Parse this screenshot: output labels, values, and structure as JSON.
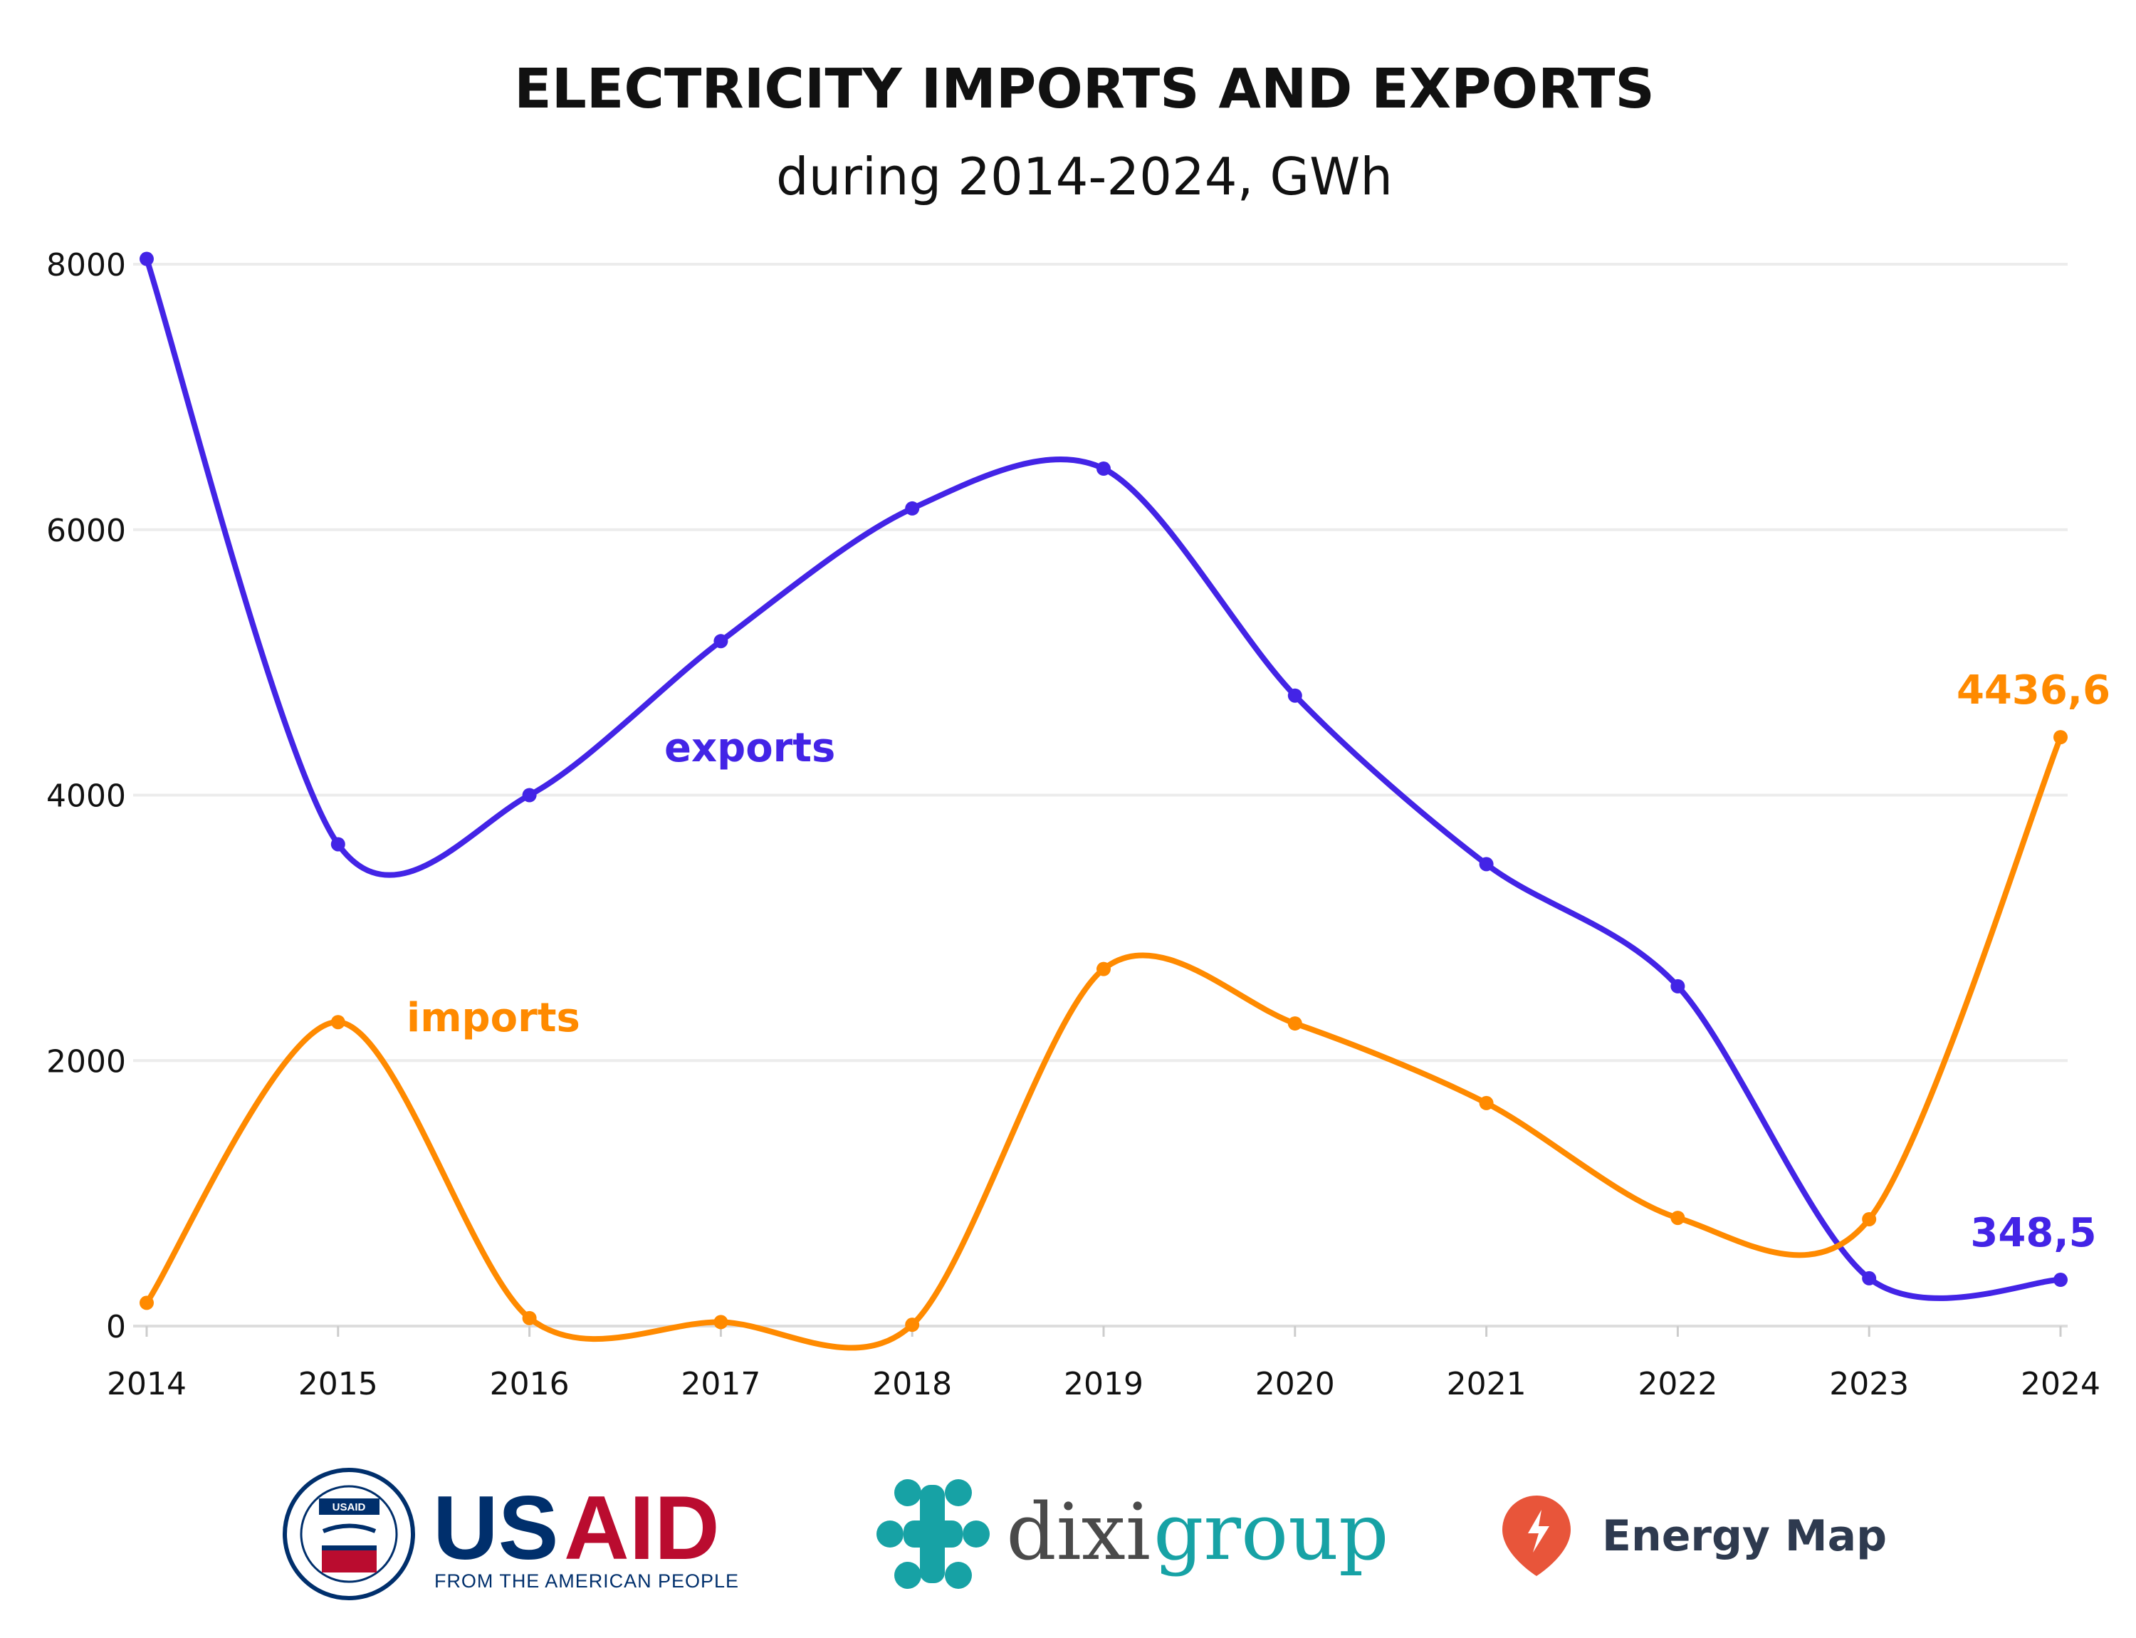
{
  "chart_data": {
    "type": "line",
    "title": "ELECTRICITY IMPORTS AND EXPORTS",
    "subtitle": "during 2014-2024, GWh",
    "xlabel": "",
    "ylabel": "",
    "categories": [
      "2014",
      "2015",
      "2016",
      "2017",
      "2018",
      "2019",
      "2020",
      "2021",
      "2022",
      "2023",
      "2024"
    ],
    "yticks": [
      "0",
      "2000",
      "4000",
      "6000",
      "8000"
    ],
    "ylim": [
      0,
      8000
    ],
    "grid": true,
    "smooth": true,
    "series": [
      {
        "name": "exports",
        "color": "#4324e6",
        "values": [
          8040,
          3630,
          4000,
          5160,
          6160,
          6460,
          4750,
          3480,
          2560,
          360,
          348.5
        ],
        "end_label": "348,5"
      },
      {
        "name": "imports",
        "color": "#ff8a00",
        "values": [
          175,
          2290,
          60,
          30,
          10,
          2690,
          2280,
          1680,
          815,
          805,
          4436.6
        ],
        "end_label": "4436,6"
      }
    ]
  },
  "logos": {
    "usaid": {
      "text_us": "US",
      "text_aid": "AID",
      "tagline": "FROM THE AMERICAN PEOPLE",
      "seal_text": "UNITED STATES AGENCY INTERNATIONAL DEVELOPMENT",
      "seal_badge": "USAID"
    },
    "dixigroup": {
      "text_dixi": "dixi",
      "text_group": "group"
    },
    "energy_map": {
      "text": "Energy Map"
    }
  },
  "colors": {
    "exports": "#4324e6",
    "imports": "#ff8a00",
    "usaid_blue": "#002f6c",
    "usaid_red": "#ba0c2f",
    "dixi_teal": "#17a2a5",
    "dixi_gray": "#4a4a4a",
    "energy_map_pin": "#e8553a",
    "energy_map_text": "#2e3a4f"
  }
}
